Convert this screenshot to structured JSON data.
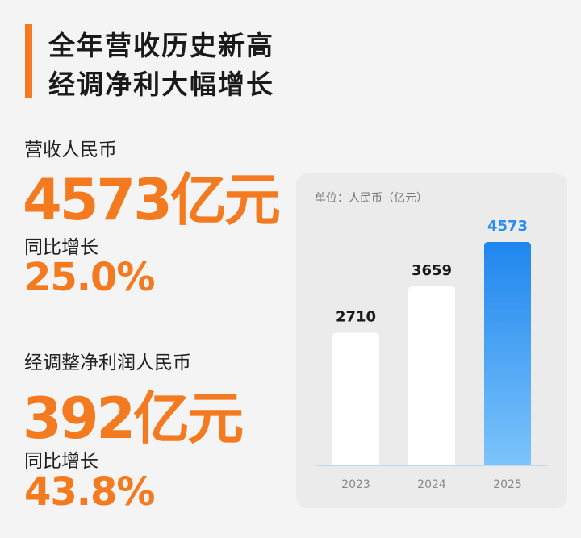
{
  "header": {
    "title_lines": [
      "全年营收历史新高",
      "经调净利大幅增长"
    ]
  },
  "stats": [
    {
      "label": "营收人民币",
      "value": "4573亿元",
      "growth_label": "同比增长",
      "growth": "25.0%"
    },
    {
      "label": "经调整净利润人民币",
      "value": "392亿元",
      "growth_label": "同比增长",
      "growth": "43.8%"
    }
  ],
  "chart_data": {
    "type": "bar",
    "subtitle": "单位：人民币（亿元）",
    "categories": [
      "2023",
      "2024",
      "2025"
    ],
    "values": [
      2710,
      3659,
      4573
    ],
    "colors": [
      "#ffffff",
      "#ffffff",
      "#2a8ef0"
    ],
    "label_colors": [
      "#1a1a1a",
      "#1a1a1a",
      "#2a8ef0"
    ]
  }
}
